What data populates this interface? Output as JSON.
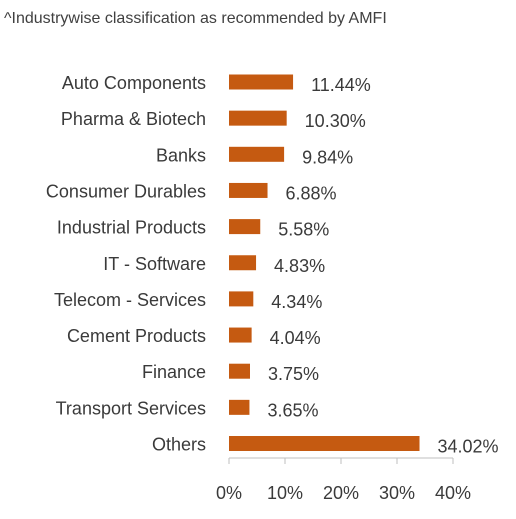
{
  "note": "^Industrywise classification as recommended by AMFI",
  "chart_data": {
    "type": "bar",
    "orientation": "horizontal",
    "title": "",
    "xlabel": "",
    "ylabel": "",
    "categories": [
      "Auto Components",
      "Pharma & Biotech",
      "Banks",
      "Consumer Durables",
      "Industrial Products",
      "IT - Software",
      "Telecom - Services",
      "Cement Products",
      "Finance",
      "Transport Services",
      "Others"
    ],
    "values": [
      11.44,
      10.3,
      9.84,
      6.88,
      5.58,
      4.83,
      4.34,
      4.04,
      3.75,
      3.65,
      34.02
    ],
    "value_labels": [
      "11.44%",
      "10.30%",
      "9.84%",
      "6.88%",
      "5.58%",
      "4.83%",
      "4.34%",
      "4.04%",
      "3.75%",
      "3.65%",
      "34.02%"
    ],
    "xlim": [
      0,
      40
    ],
    "x_ticks": [
      0,
      10,
      20,
      30,
      40
    ],
    "x_tick_labels": [
      "0%",
      "10%",
      "20%",
      "30%",
      "40%"
    ],
    "grid": false,
    "bar_color": "#c55a11"
  }
}
